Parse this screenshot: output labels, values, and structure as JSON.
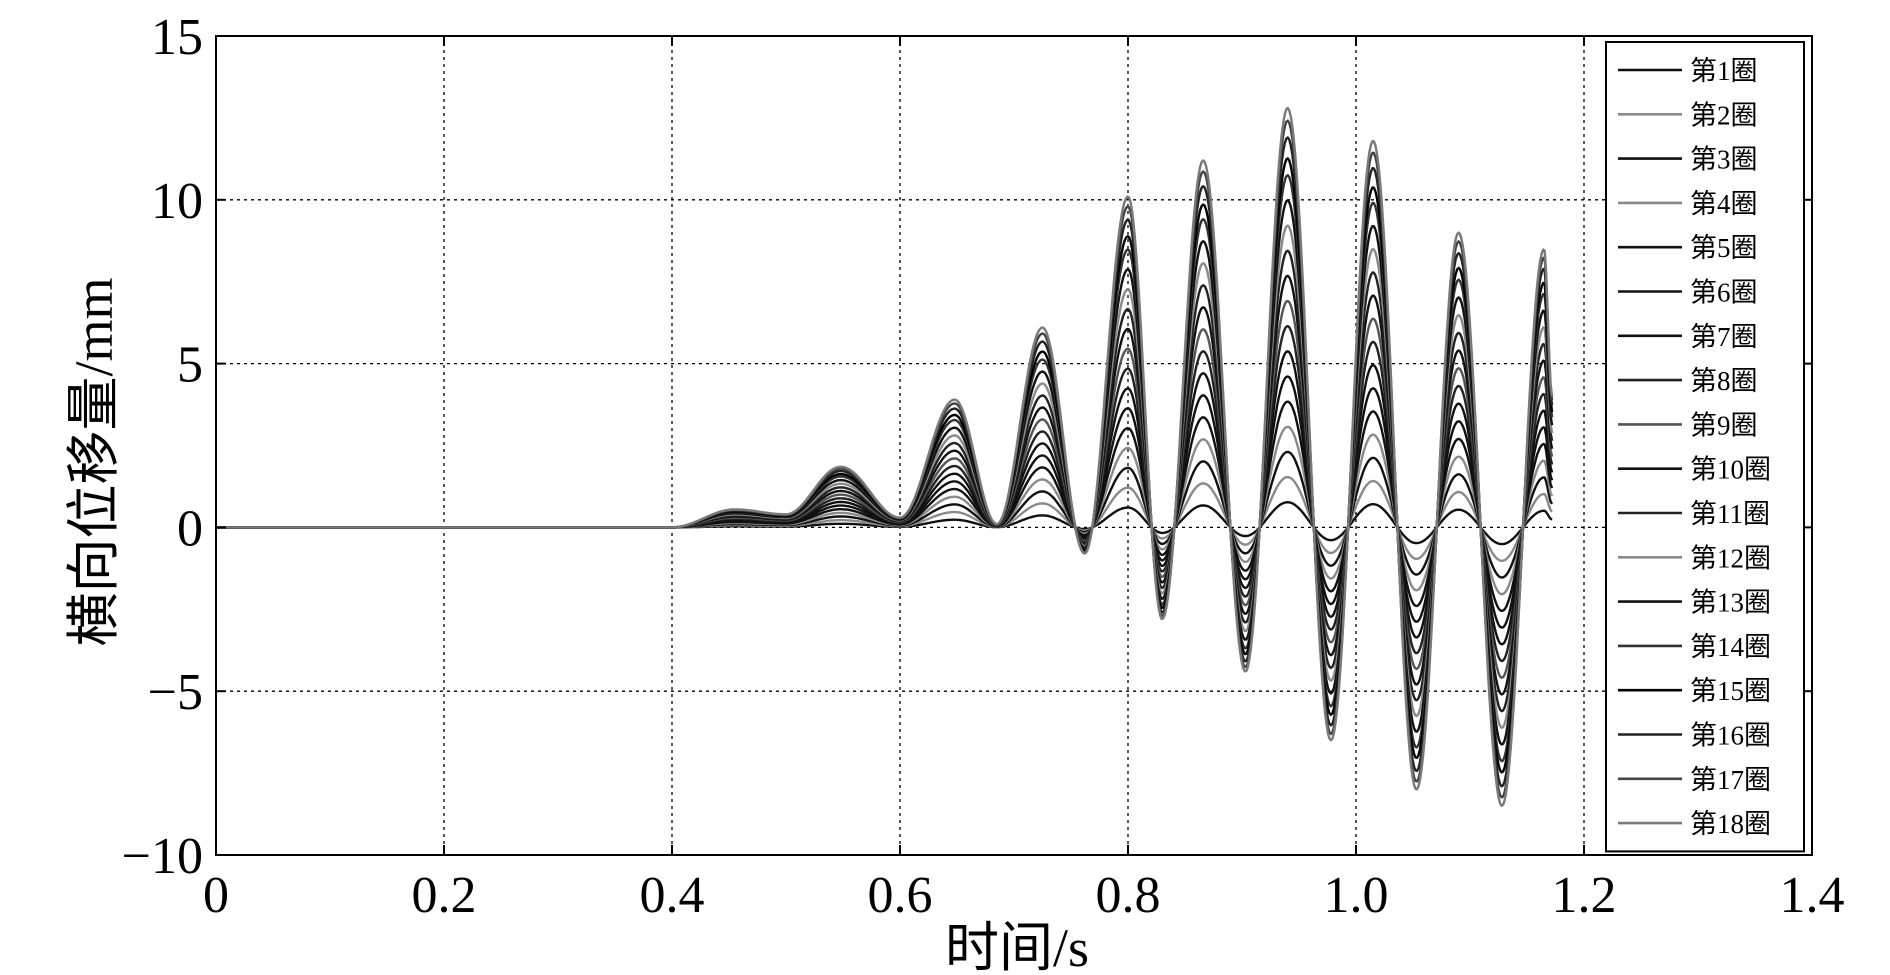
{
  "chart_data": {
    "type": "line",
    "xlabel": "时间/s",
    "ylabel": "横向位移量/mm",
    "xlim": [
      0,
      1.4
    ],
    "ylim": [
      -10,
      15
    ],
    "x_ticks": [
      "0",
      "0.2",
      "0.4",
      "0.6",
      "0.8",
      "1.0",
      "1.2",
      "1.4"
    ],
    "y_ticks": [
      "−10",
      "−5",
      "0",
      "5",
      "10",
      "15"
    ],
    "grid": true,
    "legend_position": "top-right",
    "signal": {
      "start": 0.4,
      "end": 1.172,
      "peaks": [
        {
          "t": 0.455,
          "v": 0.55
        },
        {
          "t": 0.5,
          "v": 0.4
        },
        {
          "t": 0.548,
          "v": 1.85
        },
        {
          "t": 0.6,
          "v": 0.3
        },
        {
          "t": 0.648,
          "v": 3.9
        },
        {
          "t": 0.685,
          "v": 0.1
        },
        {
          "t": 0.725,
          "v": 6.1
        },
        {
          "t": 0.762,
          "v": -0.8
        },
        {
          "t": 0.8,
          "v": 10.1
        },
        {
          "t": 0.83,
          "v": -2.8
        },
        {
          "t": 0.866,
          "v": 11.2
        },
        {
          "t": 0.903,
          "v": -4.4
        },
        {
          "t": 0.94,
          "v": 12.8
        },
        {
          "t": 0.978,
          "v": -6.5
        },
        {
          "t": 1.015,
          "v": 11.8
        },
        {
          "t": 1.053,
          "v": -8.0
        },
        {
          "t": 1.09,
          "v": 9.0
        },
        {
          "t": 1.128,
          "v": -8.5
        },
        {
          "t": 1.165,
          "v": 8.5
        }
      ],
      "end_value": 4.0
    },
    "series": [
      {
        "name": "第1圈",
        "scale": 0.06,
        "color": "#111111"
      },
      {
        "name": "第2圈",
        "scale": 0.12,
        "color": "#8a8a8a"
      },
      {
        "name": "第3圈",
        "scale": 0.18,
        "color": "#111111"
      },
      {
        "name": "第4圈",
        "scale": 0.24,
        "color": "#8a8a8a"
      },
      {
        "name": "第5圈",
        "scale": 0.3,
        "color": "#111111"
      },
      {
        "name": "第6圈",
        "scale": 0.36,
        "color": "#111111"
      },
      {
        "name": "第7圈",
        "scale": 0.42,
        "color": "#111111"
      },
      {
        "name": "第8圈",
        "scale": 0.48,
        "color": "#222222"
      },
      {
        "name": "第9圈",
        "scale": 0.54,
        "color": "#555555"
      },
      {
        "name": "第10圈",
        "scale": 0.6,
        "color": "#111111"
      },
      {
        "name": "第11圈",
        "scale": 0.66,
        "color": "#222222"
      },
      {
        "name": "第12圈",
        "scale": 0.72,
        "color": "#8a8a8a"
      },
      {
        "name": "第13圈",
        "scale": 0.78,
        "color": "#111111"
      },
      {
        "name": "第14圈",
        "scale": 0.84,
        "color": "#333333"
      },
      {
        "name": "第15圈",
        "scale": 0.88,
        "color": "#000000"
      },
      {
        "name": "第16圈",
        "scale": 0.93,
        "color": "#222222"
      },
      {
        "name": "第17圈",
        "scale": 0.97,
        "color": "#444444"
      },
      {
        "name": "第18圈",
        "scale": 1.0,
        "color": "#7a7a7a"
      }
    ]
  }
}
